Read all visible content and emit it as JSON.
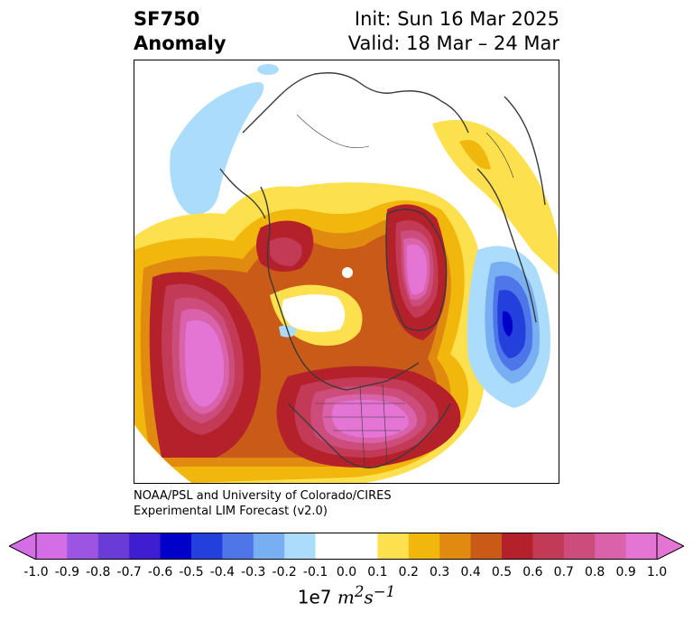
{
  "title": {
    "left_line1": "SF750",
    "left_line2": "Anomaly",
    "right_line1": "Init: Sun 16 Mar 2025",
    "right_line2": "Valid: 18 Mar – 24 Mar"
  },
  "credit": {
    "line1": "NOAA/PSL and University of Colorado/CIRES",
    "line2": "Experimental LIM Forecast (v2.0)"
  },
  "colorbar": {
    "tick_labels": [
      "-1.0",
      "-0.9",
      "-0.8",
      "-0.7",
      "-0.6",
      "-0.5",
      "-0.4",
      "-0.3",
      "-0.2",
      "-0.1",
      "0.0",
      "0.1",
      "0.2",
      "0.3",
      "0.4",
      "0.5",
      "0.6",
      "0.7",
      "0.8",
      "0.9",
      "1.0"
    ],
    "colors": [
      "#d56ee6",
      "#9c55e3",
      "#6a3bd6",
      "#3e1ed0",
      "#0000c8",
      "#2340dd",
      "#4e76e8",
      "#78aef2",
      "#acdcfb",
      "#ffffff",
      "#ffffff",
      "#fde04e",
      "#f1b70c",
      "#e08b10",
      "#c95a17",
      "#b4212a",
      "#c23a55",
      "#cc4d7b",
      "#d962aa",
      "#e575d5"
    ],
    "unit_prefix": "1e7",
    "unit_symbol": "m",
    "unit_exp1": "2",
    "unit_s": "s",
    "unit_exp2": "−1"
  },
  "map_colors": {
    "ocean_outline": "#3a3a3a",
    "positive_low": "#fde04e",
    "positive_mid": "#e08b10",
    "positive_high": "#b4212a",
    "positive_peak": "#e575d5",
    "negative_low": "#acdcfb",
    "negative_mid": "#4e76e8",
    "negative_peak": "#0000c8"
  }
}
